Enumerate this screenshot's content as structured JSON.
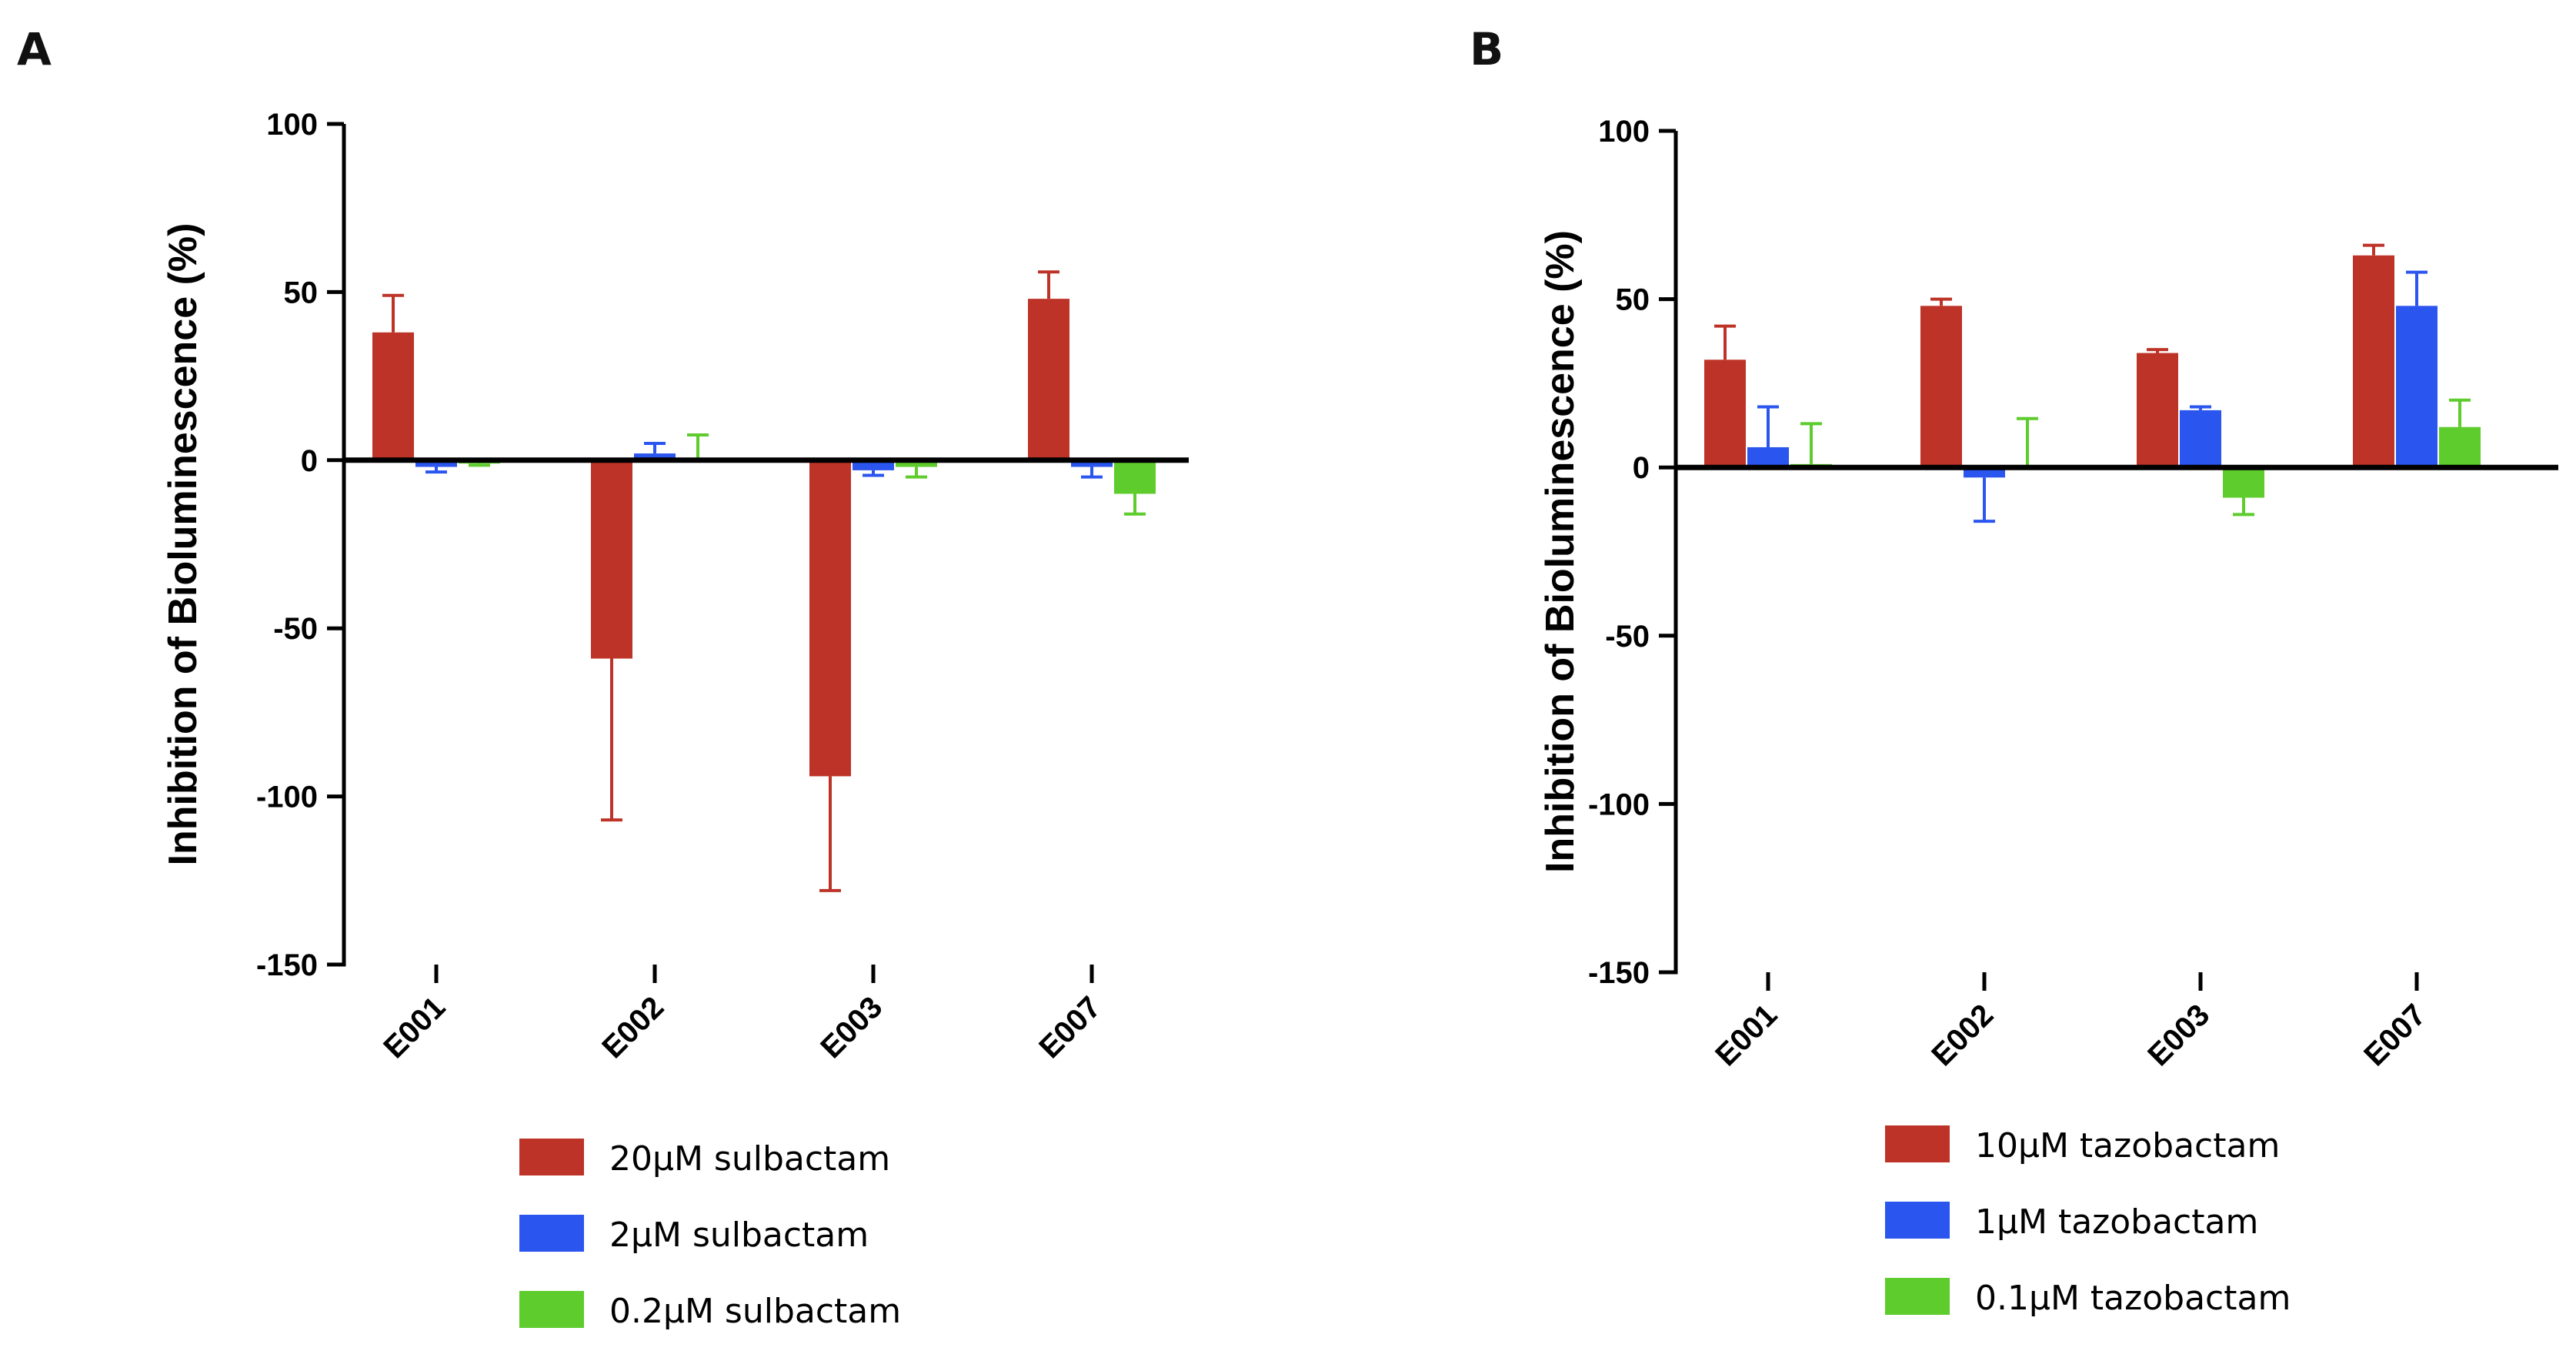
{
  "chart_data": [
    {
      "panel": "A",
      "type": "bar",
      "title": "",
      "xlabel": "",
      "ylabel": "Inhibition of Bioluminescence (%)",
      "ylim": [
        -150,
        100
      ],
      "yticks": [
        100,
        50,
        0,
        -50,
        -100,
        -150
      ],
      "ytick_labels": [
        "100",
        "50",
        "0",
        "-50",
        "-100",
        "-150"
      ],
      "categories": [
        "E001",
        "E002",
        "E003",
        "E007"
      ],
      "series": [
        {
          "name": "20µM sulbactam",
          "color": "#bd3327",
          "values": [
            38,
            -59,
            -94,
            48
          ],
          "errors": [
            11,
            48,
            34,
            8
          ]
        },
        {
          "name": "2µM sulbactam",
          "color": "#2a55ef",
          "values": [
            -2,
            2,
            -3,
            -2
          ],
          "errors": [
            1.5,
            3,
            1.5,
            3
          ]
        },
        {
          "name": "0.2µM sulbactam",
          "color": "#5dcc2c",
          "values": [
            -1,
            0.5,
            -2,
            -10
          ],
          "errors": [
            0.5,
            7,
            3,
            6
          ]
        }
      ],
      "legend_position": "bottom"
    },
    {
      "panel": "B",
      "type": "bar",
      "title": "",
      "xlabel": "",
      "ylabel": "Inhibition of Bioluminescence (%)",
      "ylim": [
        -150,
        100
      ],
      "yticks": [
        100,
        50,
        0,
        -50,
        -100,
        -150
      ],
      "ytick_labels": [
        "100",
        "50",
        "0",
        "-50",
        "-100",
        "-150"
      ],
      "categories": [
        "E001",
        "E002",
        "E003",
        "E007"
      ],
      "series": [
        {
          "name": "10µM tazobactam",
          "color": "#bd3327",
          "values": [
            32,
            48,
            34,
            63
          ],
          "errors": [
            10,
            2,
            1,
            3
          ]
        },
        {
          "name": "1µM tazobactam",
          "color": "#2a55ef",
          "values": [
            6,
            -3,
            17,
            48
          ],
          "errors": [
            12,
            13,
            1,
            10
          ]
        },
        {
          "name": "0.1µM tazobactam",
          "color": "#5dcc2c",
          "values": [
            1,
            0.5,
            -9,
            12
          ],
          "errors": [
            12,
            14,
            5,
            8
          ]
        }
      ],
      "legend_position": "bottom"
    }
  ]
}
